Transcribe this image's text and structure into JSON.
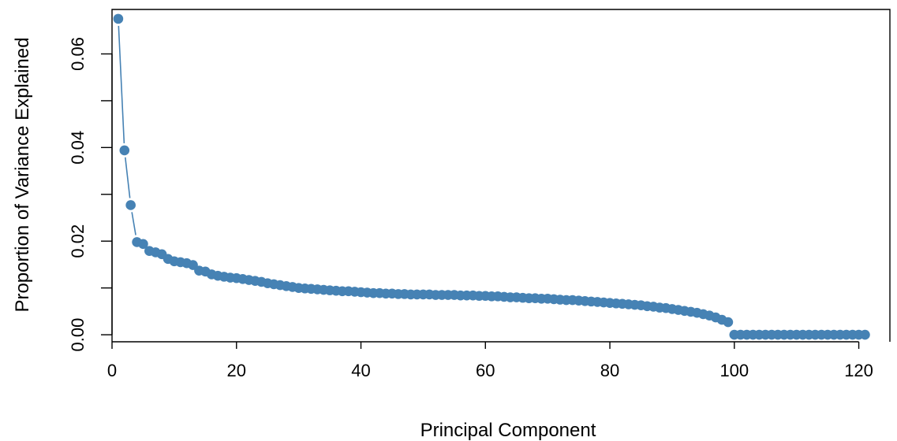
{
  "chart_data": {
    "type": "line",
    "title": "",
    "xlabel": "Principal Component",
    "ylabel": "Proportion of Variance Explained",
    "xlim": [
      0,
      125
    ],
    "ylim": [
      -0.0015,
      0.0695
    ],
    "x_ticks": [
      0,
      20,
      40,
      60,
      80,
      100,
      120
    ],
    "y_ticks": [
      0.0,
      0.02,
      0.04,
      0.06
    ],
    "x_tick_labels": [
      "0",
      "20",
      "40",
      "60",
      "80",
      "100",
      "120"
    ],
    "y_tick_labels": [
      "0.00",
      "0.02",
      "0.04",
      "0.06"
    ],
    "grid": false,
    "legend": "none",
    "series_color": "#4682b4",
    "series": [
      {
        "x": [
          1,
          2,
          3,
          4,
          5,
          6,
          7,
          8,
          9,
          10,
          11,
          12,
          13,
          14,
          15,
          16,
          17,
          18,
          19,
          20,
          21,
          22,
          23,
          24,
          25,
          26,
          27,
          28,
          29,
          30,
          31,
          32,
          33,
          34,
          35,
          36,
          37,
          38,
          39,
          40,
          41,
          42,
          43,
          44,
          45,
          46,
          47,
          48,
          49,
          50,
          51,
          52,
          53,
          54,
          55,
          56,
          57,
          58,
          59,
          60,
          61,
          62,
          63,
          64,
          65,
          66,
          67,
          68,
          69,
          70,
          71,
          72,
          73,
          74,
          75,
          76,
          77,
          78,
          79,
          80,
          81,
          82,
          83,
          84,
          85,
          86,
          87,
          88,
          89,
          90,
          91,
          92,
          93,
          94,
          95,
          96,
          97,
          98,
          99,
          100,
          101,
          102,
          103,
          104,
          105,
          106,
          107,
          108,
          109,
          110,
          111,
          112,
          113,
          114,
          115,
          116,
          117,
          118,
          119,
          120,
          121
        ],
        "values": [
          0.0675,
          0.0394,
          0.0277,
          0.0198,
          0.0194,
          0.0179,
          0.0176,
          0.0172,
          0.0162,
          0.0157,
          0.0155,
          0.0153,
          0.0149,
          0.0137,
          0.0135,
          0.0129,
          0.0126,
          0.0124,
          0.0122,
          0.0121,
          0.0119,
          0.0117,
          0.0115,
          0.0113,
          0.011,
          0.0108,
          0.0106,
          0.0104,
          0.0102,
          0.01,
          0.0099,
          0.0098,
          0.0097,
          0.0096,
          0.0095,
          0.0094,
          0.0093,
          0.0093,
          0.0092,
          0.0091,
          0.009,
          0.0089,
          0.0089,
          0.0088,
          0.0088,
          0.0087,
          0.0087,
          0.0086,
          0.0086,
          0.0086,
          0.0086,
          0.0085,
          0.0085,
          0.0085,
          0.0085,
          0.0084,
          0.0084,
          0.0084,
          0.0083,
          0.0083,
          0.0082,
          0.0082,
          0.0081,
          0.008,
          0.008,
          0.0079,
          0.0078,
          0.0078,
          0.0077,
          0.0077,
          0.0076,
          0.0075,
          0.0074,
          0.0074,
          0.0073,
          0.0072,
          0.0071,
          0.007,
          0.0069,
          0.0068,
          0.0067,
          0.0066,
          0.0065,
          0.0064,
          0.0063,
          0.0061,
          0.006,
          0.0058,
          0.0057,
          0.0055,
          0.0053,
          0.0051,
          0.0049,
          0.0047,
          0.0044,
          0.0041,
          0.0037,
          0.0032,
          0.0027,
          0.0,
          0.0,
          0.0,
          0.0,
          0.0,
          0.0,
          0.0,
          0.0,
          0.0,
          0.0,
          0.0,
          0.0,
          0.0,
          0.0,
          0.0,
          0.0,
          0.0,
          0.0,
          0.0,
          0.0,
          0.0,
          0.0
        ]
      }
    ]
  }
}
